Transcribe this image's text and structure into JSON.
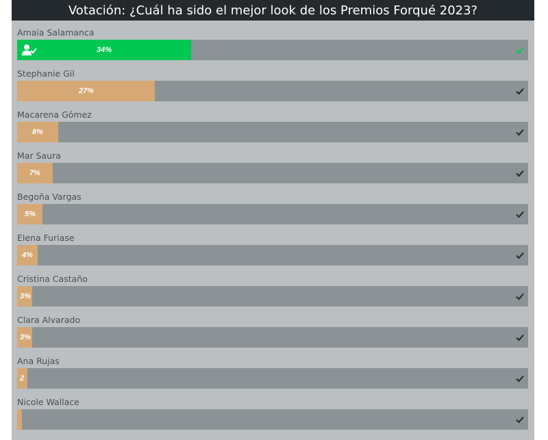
{
  "poll": {
    "title": "Votación: ¿Cuál ha sido el mejor look de los Premios Forqué 2023?",
    "colors": {
      "header_bg": "#24292d",
      "panel_bg": "#bbbfc2",
      "track": "#8c9396",
      "fill": "#d5a875",
      "winner_fill": "#00c853",
      "check": "#2b2f33",
      "winner_check": "#00c853"
    },
    "options": [
      {
        "name": "Amaia Salamanca",
        "percent": 34,
        "percent_label": "34%",
        "winner": true,
        "icons": [
          "user-check-icon",
          "check-icon"
        ]
      },
      {
        "name": "Stephanie Gil",
        "percent": 27,
        "percent_label": "27%",
        "winner": false,
        "icons": [
          "check-icon"
        ]
      },
      {
        "name": "Macarena Gómez",
        "percent": 8,
        "percent_label": "8%",
        "winner": false,
        "icons": [
          "check-icon"
        ]
      },
      {
        "name": "Mar Saura",
        "percent": 7,
        "percent_label": "7%",
        "winner": false,
        "icons": [
          "check-icon"
        ]
      },
      {
        "name": "Begoña Vargas",
        "percent": 5,
        "percent_label": "5%",
        "winner": false,
        "icons": [
          "check-icon"
        ]
      },
      {
        "name": "Elena Furiase",
        "percent": 4,
        "percent_label": "4%",
        "winner": false,
        "icons": [
          "check-icon"
        ]
      },
      {
        "name": "Cristina Castaño",
        "percent": 3,
        "percent_label": "3%",
        "winner": false,
        "icons": [
          "check-icon"
        ]
      },
      {
        "name": "Clara Alvarado",
        "percent": 3,
        "percent_label": "3%",
        "winner": false,
        "icons": [
          "check-icon"
        ]
      },
      {
        "name": "Ana Rujas",
        "percent": 2,
        "percent_label": "2",
        "winner": false,
        "icons": [
          "check-icon"
        ]
      },
      {
        "name": "Nicole Wallace",
        "percent": 1,
        "percent_label": "",
        "winner": false,
        "icons": [
          "check-icon"
        ]
      }
    ]
  }
}
